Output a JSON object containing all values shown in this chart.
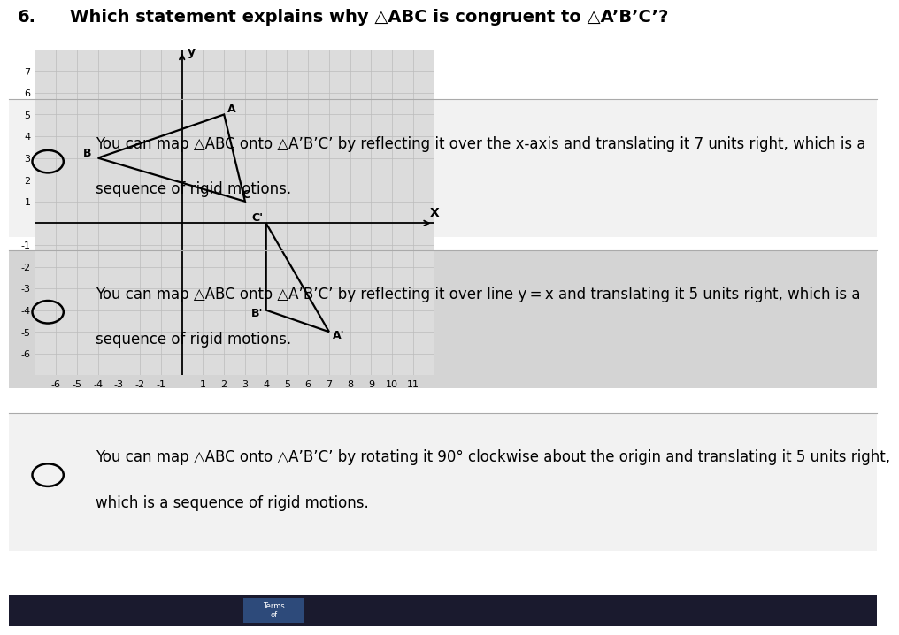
{
  "title_num": "6.",
  "title_text": "Which statement explains why △ABC is congruent to △A’B’C’?",
  "graph": {
    "xlim": [
      -7,
      12
    ],
    "ylim": [
      -7,
      8
    ],
    "xticks": [
      -6,
      -5,
      -4,
      -3,
      -2,
      -1,
      1,
      2,
      3,
      4,
      5,
      6,
      7,
      8,
      9,
      10,
      11
    ],
    "yticks": [
      -6,
      -5,
      -4,
      -3,
      -2,
      -1,
      1,
      2,
      3,
      4,
      5,
      6,
      7
    ],
    "triangle_ABC": {
      "A": [
        2,
        5
      ],
      "B": [
        -4,
        3
      ],
      "C": [
        3,
        1
      ]
    },
    "triangle_A1B1C1": {
      "A1": [
        7,
        -5
      ],
      "B1": [
        4,
        -4
      ],
      "C1": [
        4,
        0
      ]
    },
    "label_A": [
      2.15,
      5.1
    ],
    "label_B": [
      -4.7,
      3.1
    ],
    "label_C": [
      2.85,
      1.15
    ],
    "label_A1": [
      7.15,
      -5.3
    ],
    "label_B1": [
      3.3,
      -4.3
    ],
    "label_C1": [
      3.3,
      0.1
    ],
    "grid_color": "#bbbbbb",
    "axis_color": "#000000",
    "triangle_color": "#000000",
    "bg_color": "#dcdcdc"
  },
  "options": [
    {
      "text1": "You can map △ABC onto △A’B’C’ by reflecting it over the x-axis and translating it 7 units right, which is a",
      "text2": "sequence of rigid motions."
    },
    {
      "text1": "You can map △ABC onto △A’B’C’ by reflecting it over line y = x and translating it 5 units right, which is a",
      "text2": "sequence of rigid motions."
    },
    {
      "text1": "You can map △ABC onto △A’B’C’ by rotating it 90° clockwise about the origin and translating it 5 units right,",
      "text2": "which is a sequence of rigid motions."
    }
  ],
  "option_bg_colors": [
    "#f2f2f2",
    "#d4d4d4",
    "#f2f2f2"
  ],
  "font_size_title": 14,
  "font_size_option": 12,
  "font_size_axis": 8,
  "font_size_label": 9
}
